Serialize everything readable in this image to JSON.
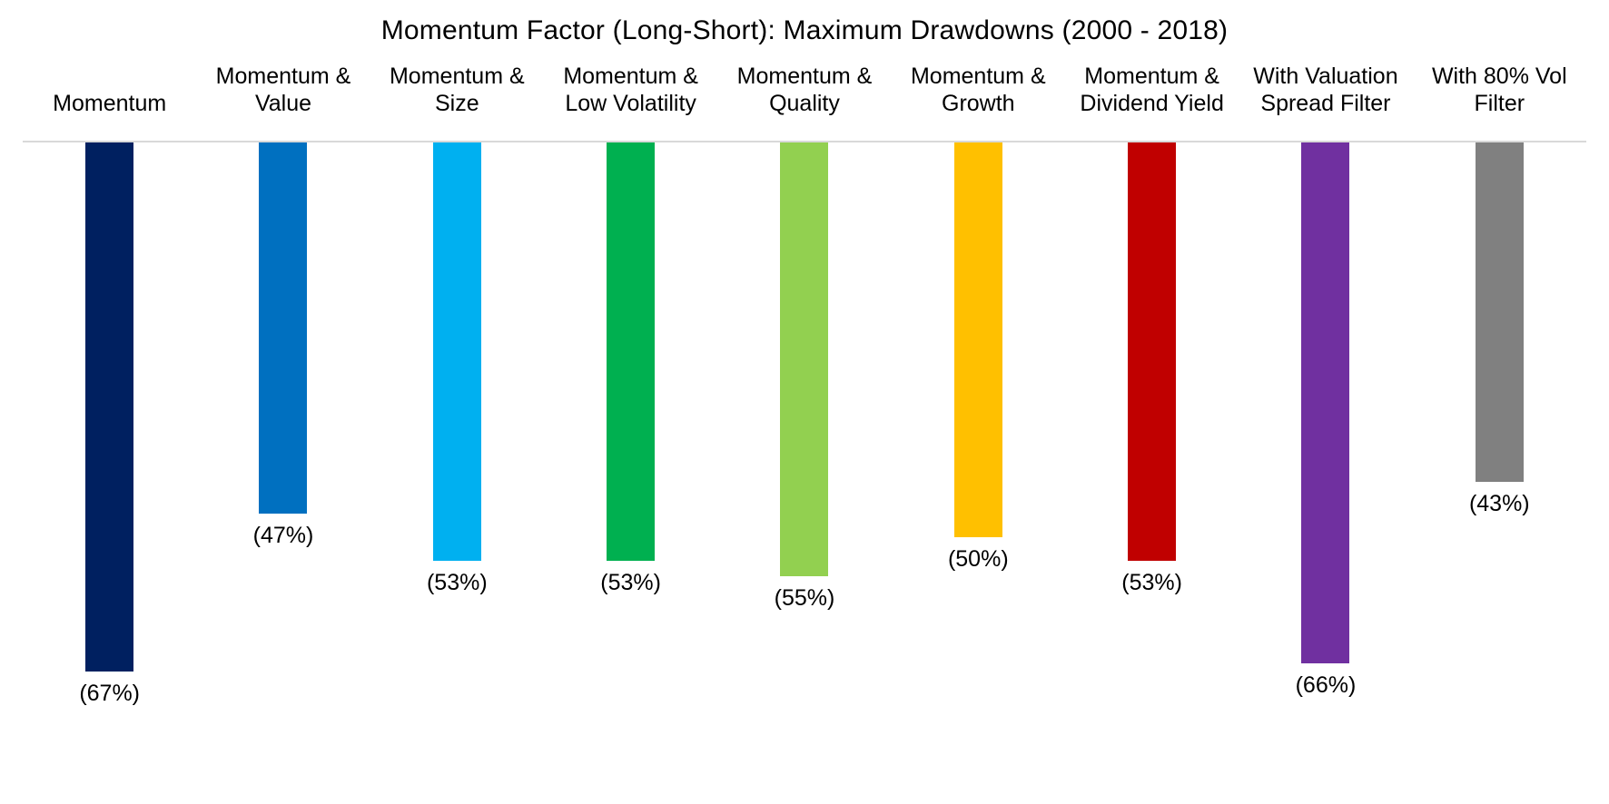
{
  "chart_data": {
    "type": "bar",
    "title": "Momentum Factor (Long-Short): Maximum Drawdowns (2000 - 2018)",
    "orientation": "vertical",
    "direction": "negative-downward",
    "categories": [
      "Momentum",
      "Momentum & Value",
      "Momentum & Size",
      "Momentum & Low Volatility",
      "Momentum & Quality",
      "Momentum & Growth",
      "Momentum & Dividend Yield",
      "With Valuation Spread Filter",
      "With 80% Vol Filter"
    ],
    "values": [
      -67,
      -47,
      -53,
      -53,
      -55,
      -50,
      -53,
      -66,
      -43
    ],
    "data_labels": [
      "(67%)",
      "(47%)",
      "(53%)",
      "(53%)",
      "(55%)",
      "(50%)",
      "(53%)",
      "(66%)",
      "(43%)"
    ],
    "bar_colors": [
      "#002060",
      "#0070C0",
      "#00B0F0",
      "#00B050",
      "#92D050",
      "#FFC000",
      "#C00000",
      "#7030A0",
      "#808080"
    ],
    "baseline_color": "#D9D9D9",
    "text_color": "#000000",
    "background_color": "#FFFFFF",
    "ylim": [
      -70,
      0
    ],
    "grid": false,
    "legend": false,
    "xlabel": "",
    "ylabel": ""
  }
}
